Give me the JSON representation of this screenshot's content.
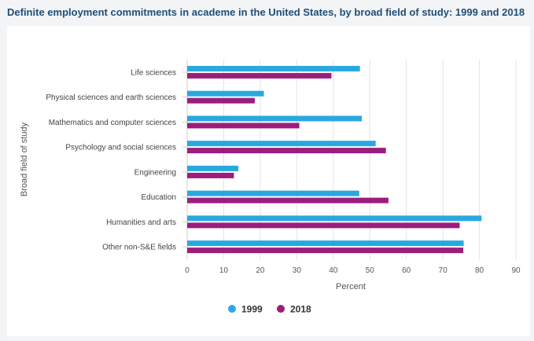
{
  "chart_data": {
    "type": "bar",
    "orientation": "horizontal",
    "title": "Definite employment commitments in academe in the United States, by broad field of study: 1999 and 2018",
    "xlabel": "Percent",
    "ylabel": "Broad field of study",
    "xlim": [
      0,
      90
    ],
    "xticks": [
      0,
      10,
      20,
      30,
      40,
      50,
      60,
      70,
      80,
      90
    ],
    "grid": true,
    "legend_position": "bottom-center",
    "categories": [
      "Life sciences",
      "Physical sciences and earth sciences",
      "Mathematics and computer sciences",
      "Psychology and social sciences",
      "Engineering",
      "Education",
      "Humanities and arts",
      "Other non-S&E fields"
    ],
    "series": [
      {
        "name": "1999",
        "color": "#29a8e0",
        "values": [
          47.3,
          21.0,
          47.8,
          51.6,
          14.0,
          47.1,
          80.6,
          75.7
        ]
      },
      {
        "name": "2018",
        "color": "#9b1d7e",
        "values": [
          39.5,
          18.5,
          30.7,
          54.4,
          12.8,
          55.1,
          74.6,
          75.6
        ]
      }
    ]
  }
}
